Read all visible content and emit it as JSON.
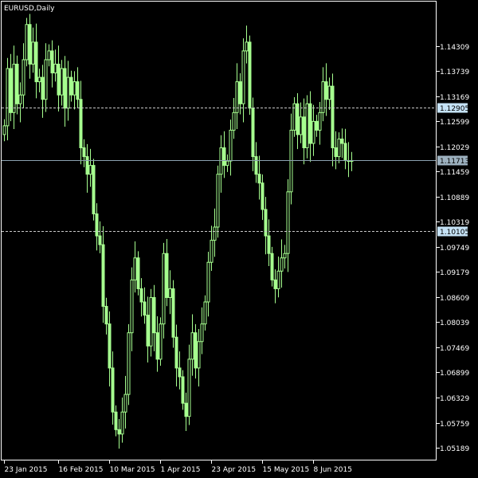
{
  "window": {
    "symbol_label": "EURUSD,Daily"
  },
  "colors": {
    "background": "#000000",
    "foreground": "#ffffff",
    "candle": "#a6ff8f",
    "hline": "#c8c8c8",
    "bid_line": "#8aa1b0",
    "tag_fill": "#c5e2f6",
    "bid_tag_fill": "#9db1bf"
  },
  "chart_data": {
    "type": "candlestick",
    "title": "EURUSD,Daily",
    "xlabel": "",
    "ylabel": "",
    "grid": false,
    "ylim": [
      1.049,
      1.1532
    ],
    "y_ticks": [
      "1.14309",
      "1.13739",
      "1.13169",
      "1.12599",
      "1.12029",
      "1.11459",
      "1.10889",
      "1.10319",
      "1.09749",
      "1.09179",
      "1.08609",
      "1.08039",
      "1.07469",
      "1.06899",
      "1.06329",
      "1.05759",
      "1.05189"
    ],
    "x_ticks": [
      {
        "label": "23 Jan 2015",
        "bar": 0
      },
      {
        "label": "16 Feb 2015",
        "bar": 17
      },
      {
        "label": "10 Mar 2015",
        "bar": 33
      },
      {
        "label": "1 Apr 2015",
        "bar": 49
      },
      {
        "label": "23 Apr 2015",
        "bar": 65
      },
      {
        "label": "15 May 2015",
        "bar": 81
      },
      {
        "label": "8 Jun 2015",
        "bar": 97
      }
    ],
    "horizontal_lines": [
      {
        "value": 1.12905,
        "label": "1.12905",
        "style": "dashed"
      },
      {
        "value": 1.11713,
        "label": "1.11713",
        "style": "solid",
        "role": "bid"
      },
      {
        "value": 1.10105,
        "label": "1.10105",
        "style": "dashed"
      }
    ],
    "bar_count": 110,
    "closes": [
      1.125,
      1.138,
      1.128,
      1.139,
      1.13,
      1.132,
      1.14,
      1.148,
      1.139,
      1.144,
      1.135,
      1.136,
      1.131,
      1.14,
      1.142,
      1.137,
      1.139,
      1.132,
      1.138,
      1.129,
      1.136,
      1.132,
      1.135,
      1.131,
      1.12,
      1.118,
      1.114,
      1.116,
      1.105,
      1.1,
      1.098,
      1.084,
      1.08,
      1.07,
      1.06,
      1.056,
      1.055,
      1.06,
      1.064,
      1.078,
      1.09,
      1.095,
      1.088,
      1.085,
      1.082,
      1.075,
      1.086,
      1.078,
      1.072,
      1.08,
      1.096,
      1.086,
      1.088,
      1.077,
      1.07,
      1.068,
      1.062,
      1.059,
      1.072,
      1.078,
      1.07,
      1.076,
      1.08,
      1.085,
      1.094,
      1.099,
      1.102,
      1.114,
      1.12,
      1.116,
      1.117,
      1.124,
      1.128,
      1.135,
      1.13,
      1.142,
      1.144,
      1.129,
      1.118,
      1.114,
      1.112,
      1.106,
      1.1,
      1.096,
      1.09,
      1.088,
      1.092,
      1.095,
      1.096,
      1.11,
      1.124,
      1.13,
      1.123,
      1.127,
      1.12,
      1.13,
      1.121,
      1.126,
      1.124,
      1.128,
      1.135,
      1.131,
      1.134,
      1.12,
      1.118,
      1.122,
      1.121,
      1.1171,
      1.1171,
      1.1171
    ]
  }
}
